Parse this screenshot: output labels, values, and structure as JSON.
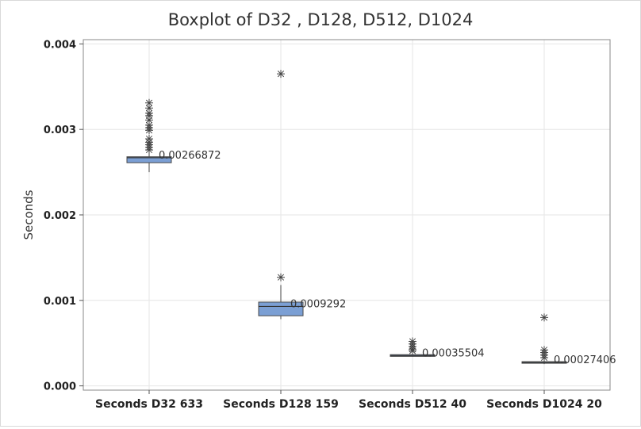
{
  "chart_data": {
    "type": "box",
    "title": "Boxplot of D32 , D128, D512, D1024",
    "xlabel": "",
    "ylabel": "Seconds",
    "ylim": [
      -5e-05,
      0.00405
    ],
    "yticks": [
      0.0,
      0.001,
      0.002,
      0.003,
      0.004
    ],
    "ytick_labels": [
      "0.000",
      "0.001",
      "0.002",
      "0.003",
      "0.004"
    ],
    "grid": true,
    "colors": {
      "box": "#7b9fd4",
      "box_edge": "#4a4a4a",
      "median": "#333333",
      "grid": "#e6e6e6",
      "outlier": "#444444"
    },
    "categories": [
      "Seconds D32 633",
      "Seconds D128 159",
      "Seconds D512 40",
      "Seconds D1024 20"
    ],
    "series": [
      {
        "q1": 0.00261,
        "median": 0.00266872,
        "q3": 0.00268,
        "whisker_low": 0.0025,
        "whisker_high": 0.00273,
        "median_label": "0.00266872",
        "outliers": [
          0.00331,
          0.00325,
          0.00319,
          0.00316,
          0.00311,
          0.00305,
          0.00302,
          0.00299,
          0.00289,
          0.00285,
          0.00282,
          0.00279,
          0.00276
        ]
      },
      {
        "q1": 0.00082,
        "median": 0.0009292,
        "q3": 0.00098,
        "whisker_low": 0.00078,
        "whisker_high": 0.00118,
        "median_label": "0.0009292",
        "outliers": [
          0.00365,
          0.00127
        ]
      },
      {
        "q1": 0.000345,
        "median": 0.00035504,
        "q3": 0.000365,
        "whisker_low": 0.00034,
        "whisker_high": 0.000372,
        "median_label": "0.00035504",
        "outliers": [
          0.00052,
          0.00049,
          0.00046,
          0.00043,
          0.00041
        ]
      },
      {
        "q1": 0.000265,
        "median": 0.00027406,
        "q3": 0.000283,
        "whisker_low": 0.000255,
        "whisker_high": 0.00029,
        "median_label": "0.00027406",
        "outliers": [
          0.0008,
          0.00042,
          0.00039,
          0.00036,
          0.00033
        ]
      }
    ]
  }
}
